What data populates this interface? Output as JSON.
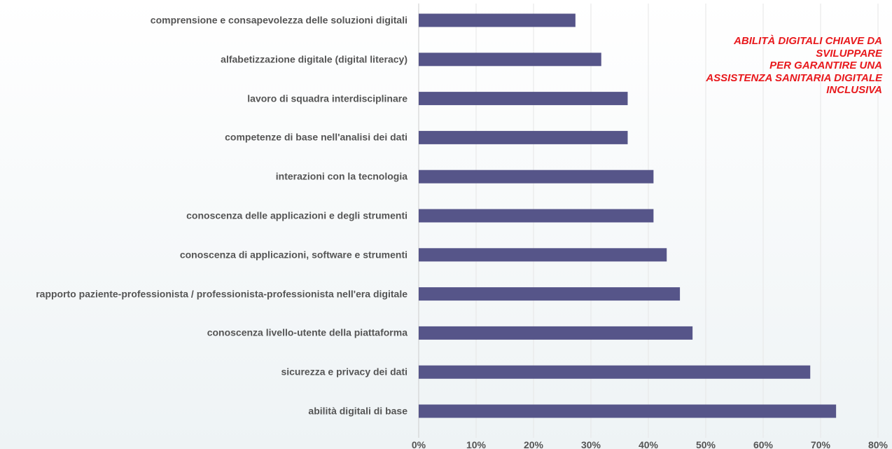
{
  "chart_data": {
    "type": "bar",
    "orientation": "horizontal",
    "title": [
      "ABILITÀ DIGITALI CHIAVE DA",
      "SVILUPPARE",
      "PER GARANTIRE UNA",
      "ASSISTENZA SANITARIA DIGITALE",
      "INCLUSIVA"
    ],
    "categories": [
      "comprensione e consapevolezza delle soluzioni digitali",
      "alfabetizzazione digitale (digital literacy)",
      "lavoro di squadra interdisciplinare",
      "competenze di base nell'analisi dei dati",
      "interazioni con la tecnologia",
      "conoscenza delle applicazioni e degli strumenti",
      "conoscenza di applicazioni, software e strumenti",
      "rapporto paziente-professionista / professionista-professionista nell'era digitale",
      "conoscenza livello-utente della piattaforma",
      "sicurezza e privacy dei dati",
      "abilità digitali di base"
    ],
    "values": [
      27.3,
      31.8,
      36.4,
      36.4,
      40.9,
      40.9,
      43.2,
      45.5,
      47.7,
      68.2,
      72.7
    ],
    "color": "#565589",
    "xlim": [
      0,
      80
    ],
    "xticks": [
      {
        "value": 0,
        "label": "0%"
      },
      {
        "value": 10,
        "label": "10%"
      },
      {
        "value": 20,
        "label": "20%"
      },
      {
        "value": 30,
        "label": "30%"
      },
      {
        "value": 40,
        "label": "40%"
      },
      {
        "value": 50,
        "label": "50%"
      },
      {
        "value": 60,
        "label": "60%"
      },
      {
        "value": 70,
        "label": "70%"
      },
      {
        "value": 80,
        "label": "80%"
      }
    ],
    "grid": true
  }
}
